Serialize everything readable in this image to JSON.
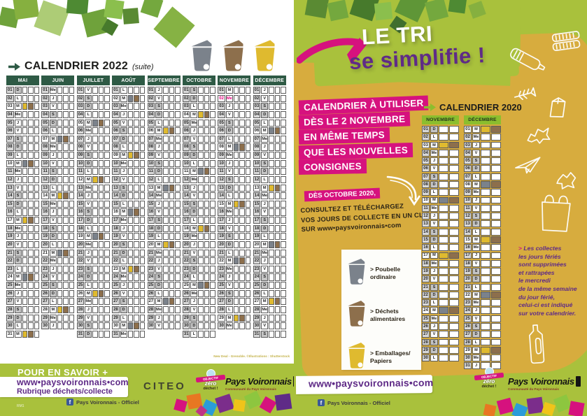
{
  "colors": {
    "page_green": "#a9c13c",
    "mustard": "#d7ac3e",
    "header_green_2022": "#2e5a45",
    "header_green_2020": "#8cbe2e",
    "magenta": "#d6127e",
    "purple": "#5f2b87",
    "bin_grey": "#7b828b",
    "bin_brown": "#8d6f4c",
    "bin_yellow": "#dfba2f",
    "holiday_pink": "#e5007e",
    "facebook_blue": "#3b5998"
  },
  "left_page": {
    "title": "CALENDRIER 2022",
    "title_suffix": "(suite)",
    "credit": "New Deal - Grenoble. ©Illustrations : Shutterstock",
    "footer": {
      "heading": "POUR EN SAVOIR +",
      "url": "www•paysvoironnais•com",
      "rubrique": "Rubrique déchets/collecte",
      "facebook": "Pays Voironnais - Officiel",
      "ref": "RM1",
      "citeo": "CITEO"
    }
  },
  "right_page": {
    "title_line1": "LE TRI",
    "title_line2": "se simplifie !",
    "banner_lines": [
      "CALENDRIER À UTILISER",
      "DÈS LE 2 NOVEMBRE",
      "EN MÊME TEMPS",
      "QUE LES NOUVELLES",
      "CONSIGNES"
    ],
    "date_chip": "DÈS OCTOBRE 2020,",
    "info_lines": [
      "CONSULTEZ ET TÉLÉCHARGEZ",
      "VOS JOURS DE COLLECTE EN UN CLIC,",
      "SUR www•paysvoironnais•com"
    ],
    "cal2020_title": "CALENDRIER 2020",
    "legend": [
      {
        "color": "grey",
        "label": "> Poubelle ordinaire"
      },
      {
        "color": "brown",
        "label": "> Déchets alimentaires"
      },
      {
        "color": "yellow",
        "label": "> Emballages/ Papiers"
      }
    ],
    "note_prefix": ">",
    "note_lines": [
      "Les collectes",
      "les jours fériés",
      "sont supprimées",
      "et rattrapées",
      "le mercredi",
      "de la même semaine",
      "du jour férié,",
      "celui-ci est indiqué",
      "sur votre calendrier."
    ],
    "footer": {
      "url": "www•paysvoironnais•com",
      "facebook": "Pays Voironnais - Officiel"
    }
  },
  "logos": {
    "zero_dechet": {
      "top": "OBJECTIF",
      "mid": "zéro",
      "bottom": "déchet !"
    },
    "pays_voironnais": {
      "name": "Pays Voironnais",
      "tagline": "Communauté du Pays Voironnais"
    }
  },
  "calendar2022": {
    "months": [
      {
        "name": "MAI",
        "letters": "D L M Me J V S D L M Me J V S D L M Me J V S D L M Me J V S D L M",
        "collections": {
          "3": "Y",
          "10": "G",
          "17": "Y",
          "24": "G",
          "31": "Y"
        }
      },
      {
        "name": "JUIN",
        "letters": "Me J V S D L M Me J V S D L M Me J V S D L M Me J V S D L M Me J",
        "collections": {
          "7": "G",
          "14": "Y",
          "21": "G",
          "28": "Y"
        }
      },
      {
        "name": "JUILLET",
        "letters": "V S D L M Me J V S D L M Me J V S D L M Me J V S D L M Me J V S D",
        "collections": {
          "5": "G",
          "12": "Y",
          "19": "G",
          "26": "Y"
        }
      },
      {
        "name": "AOÛT",
        "letters": "L M Me J V S D L M Me J V S D L M Me J V S D L M Me J V S D L M Me",
        "collections": {
          "2": "G",
          "9": "Y",
          "16": "G",
          "23": "Y",
          "30": "G"
        }
      },
      {
        "name": "SEPTEMBRE",
        "letters": "J V S D L M Me J V S D L M Me J V S D L M Me J V S D L M Me J V",
        "collections": {
          "6": "Y",
          "13": "G",
          "20": "Y",
          "27": "G"
        }
      },
      {
        "name": "OCTOBRE",
        "letters": "S D L M Me J V S D L M Me J V S D L M Me J V S D L M Me J V S D L",
        "collections": {
          "4": "Y",
          "11": "G",
          "18": "Y",
          "25": "G"
        }
      },
      {
        "name": "NOVEMBRE",
        "letters": "M Me J V S D L M Me J V S D L M Me J V S D L M Me J V S D L M Me",
        "collections": {
          "8": "G",
          "15": "Y",
          "22": "G",
          "29": "Y"
        },
        "special": {
          "2": "holiday"
        }
      },
      {
        "name": "DÉCEMBRE",
        "letters": "J V S D L M Me J V S D L M Me J V S D L M Me J V S D L M Me J V S",
        "collections": {
          "6": "G",
          "13": "Y",
          "20": "G",
          "27": "Y"
        }
      }
    ]
  },
  "calendar2020": {
    "months": [
      {
        "name": "NOVEMBRE",
        "letters": "D L M Me J V S D L M Me J V S D L M Me J V S D L M Me J V S D L",
        "collections": {
          "3": "Y",
          "10": "G",
          "17": "Y",
          "24": "G"
        }
      },
      {
        "name": "DÉCEMBRE",
        "letters": "M Me J V S D L M Me J V S D L M Me J V S D L M Me J V S D L M Me J",
        "collections": {
          "1": "Y",
          "8": "G",
          "15": "Y",
          "22": "G",
          "29": "Y"
        }
      }
    ]
  }
}
